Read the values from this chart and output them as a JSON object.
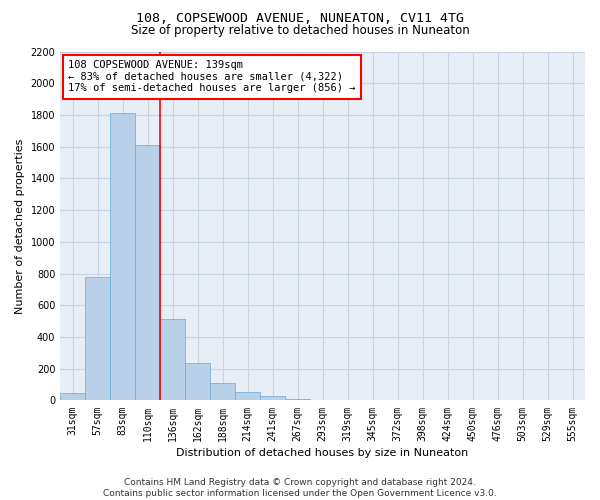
{
  "title": "108, COPSEWOOD AVENUE, NUNEATON, CV11 4TG",
  "subtitle": "Size of property relative to detached houses in Nuneaton",
  "xlabel": "Distribution of detached houses by size in Nuneaton",
  "ylabel": "Number of detached properties",
  "categories": [
    "31sqm",
    "57sqm",
    "83sqm",
    "110sqm",
    "136sqm",
    "162sqm",
    "188sqm",
    "214sqm",
    "241sqm",
    "267sqm",
    "293sqm",
    "319sqm",
    "345sqm",
    "372sqm",
    "398sqm",
    "424sqm",
    "450sqm",
    "476sqm",
    "503sqm",
    "529sqm",
    "555sqm"
  ],
  "values": [
    50,
    780,
    1810,
    1610,
    515,
    235,
    110,
    55,
    30,
    12,
    3,
    0,
    0,
    0,
    0,
    0,
    0,
    0,
    0,
    0,
    0
  ],
  "bar_color": "#b8d0e8",
  "bar_edge_color": "#6aaad4",
  "vline_x_index": 3.5,
  "vline_color": "red",
  "annotation_text": "108 COPSEWOOD AVENUE: 139sqm\n← 83% of detached houses are smaller (4,322)\n17% of semi-detached houses are larger (856) →",
  "annotation_box_color": "white",
  "annotation_box_edge_color": "red",
  "ylim": [
    0,
    2200
  ],
  "yticks": [
    0,
    200,
    400,
    600,
    800,
    1000,
    1200,
    1400,
    1600,
    1800,
    2000,
    2200
  ],
  "grid_color": "#c8d4e4",
  "background_color": "#e8eef6",
  "footer": "Contains HM Land Registry data © Crown copyright and database right 2024.\nContains public sector information licensed under the Open Government Licence v3.0.",
  "title_fontsize": 9.5,
  "subtitle_fontsize": 8.5,
  "axis_label_fontsize": 8,
  "tick_fontsize": 7,
  "annotation_fontsize": 7.5,
  "footer_fontsize": 6.5
}
